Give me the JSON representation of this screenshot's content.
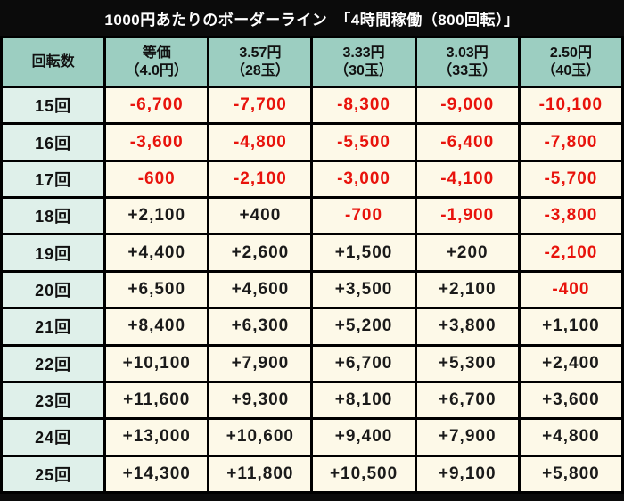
{
  "title": "1000円あたりのボーダーライン　「4時間稼働（800回転）」",
  "colors": {
    "frame-bg": "#0b0b0b",
    "title-bg": "#0b0b0b",
    "title-fg": "#ffffff",
    "header-bg": "#9ccec1",
    "rowlabel-bg": "#dff0ea",
    "cell-bg": "#fdf9e8",
    "pos-color": "#1a1a1a",
    "neg-color": "#e8130c"
  },
  "chart_data": {
    "type": "table",
    "title": "1000円あたりのボーダーライン　「4時間稼働（800回転）」",
    "corner_header": "回転数",
    "column_headers": [
      {
        "line1": "等価",
        "line2": "（4.0円）"
      },
      {
        "line1": "3.57円",
        "line2": "（28玉）"
      },
      {
        "line1": "3.33円",
        "line2": "（30玉）"
      },
      {
        "line1": "3.03円",
        "line2": "（33玉）"
      },
      {
        "line1": "2.50円",
        "line2": "（40玉）"
      }
    ],
    "rows": [
      {
        "label": "15回",
        "values": [
          "-6,700",
          "-7,700",
          "-8,300",
          "-9,000",
          "-10,100"
        ]
      },
      {
        "label": "16回",
        "values": [
          "-3,600",
          "-4,800",
          "-5,500",
          "-6,400",
          "-7,800"
        ]
      },
      {
        "label": "17回",
        "values": [
          "-600",
          "-2,100",
          "-3,000",
          "-4,100",
          "-5,700"
        ]
      },
      {
        "label": "18回",
        "values": [
          "+2,100",
          "+400",
          "-700",
          "-1,900",
          "-3,800"
        ]
      },
      {
        "label": "19回",
        "values": [
          "+4,400",
          "+2,600",
          "+1,500",
          "+200",
          "-2,100"
        ]
      },
      {
        "label": "20回",
        "values": [
          "+6,500",
          "+4,600",
          "+3,500",
          "+2,100",
          "-400"
        ]
      },
      {
        "label": "21回",
        "values": [
          "+8,400",
          "+6,300",
          "+5,200",
          "+3,800",
          "+1,100"
        ]
      },
      {
        "label": "22回",
        "values": [
          "+10,100",
          "+7,900",
          "+6,700",
          "+5,300",
          "+2,400"
        ]
      },
      {
        "label": "23回",
        "values": [
          "+11,600",
          "+9,300",
          "+8,100",
          "+6,700",
          "+3,600"
        ]
      },
      {
        "label": "24回",
        "values": [
          "+13,000",
          "+10,600",
          "+9,400",
          "+7,900",
          "+4,800"
        ]
      },
      {
        "label": "25回",
        "values": [
          "+14,300",
          "+11,800",
          "+10,500",
          "+9,100",
          "+5,800"
        ]
      }
    ]
  }
}
